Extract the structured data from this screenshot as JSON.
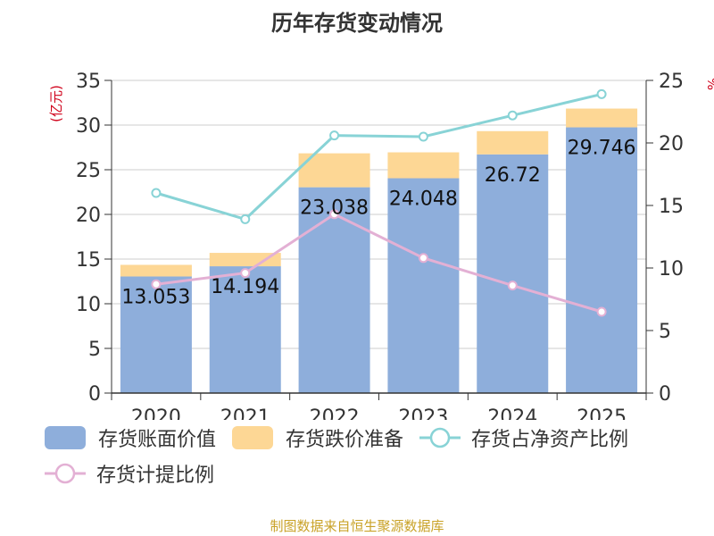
{
  "chart_data": {
    "type": "bar",
    "title": "历年存货变动情况",
    "categories": [
      "2020",
      "2021",
      "2022",
      "2023",
      "2024",
      "2025"
    ],
    "y_left": {
      "label": "(亿元)",
      "lim": [
        0,
        35
      ],
      "ticks": [
        0,
        5,
        10,
        15,
        20,
        25,
        30,
        35
      ]
    },
    "y_right": {
      "label": "%",
      "lim": [
        0,
        25
      ],
      "ticks": [
        0,
        5,
        10,
        15,
        20,
        25
      ]
    },
    "series": [
      {
        "name": "存货账面价值",
        "kind": "bar",
        "axis": "left",
        "color": "#8eaedb",
        "values": [
          13.053,
          14.194,
          23.038,
          24.048,
          26.72,
          29.746
        ],
        "labels": [
          "13.053",
          "14.194",
          "23.038",
          "24.048",
          "26.72",
          "29.746"
        ]
      },
      {
        "name": "存货跌价准备",
        "kind": "bar-stack",
        "axis": "left",
        "color": "#fdd795",
        "values": [
          1.3,
          1.5,
          3.8,
          2.9,
          2.6,
          2.1
        ]
      },
      {
        "name": "存货占净资产比例",
        "kind": "line",
        "axis": "right",
        "color": "#88d3d6",
        "values": [
          16.0,
          13.9,
          20.6,
          20.5,
          22.2,
          23.9
        ]
      },
      {
        "name": "存货计提比例",
        "kind": "line",
        "axis": "right",
        "color": "#e3b0d4",
        "values": [
          8.7,
          9.6,
          14.3,
          10.8,
          8.6,
          6.5
        ]
      }
    ],
    "grid": true,
    "legend_position": "bottom"
  },
  "footer": {
    "source": "制图数据来自恒生聚源数据库"
  }
}
